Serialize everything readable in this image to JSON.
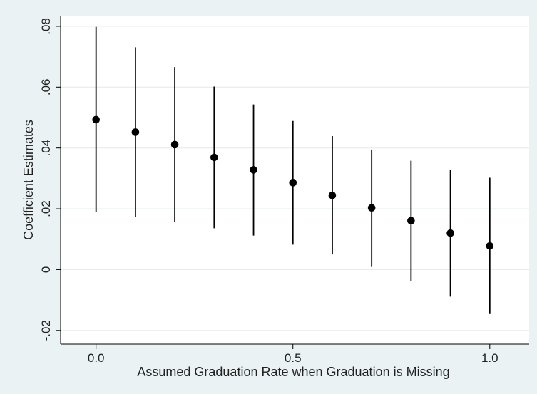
{
  "chart_data": {
    "type": "scatter",
    "xlabel": "Assumed Graduation Rate when Graduation is Missing",
    "ylabel": "Coefficient Estimates",
    "xlim": [
      -0.09,
      1.1
    ],
    "ylim": [
      -0.0245,
      0.0835
    ],
    "x_ticks": [
      0.0,
      0.5,
      1.0
    ],
    "x_tick_labels": [
      "0.0",
      "0.5",
      "1.0"
    ],
    "y_ticks": [
      -0.02,
      0,
      0.02,
      0.04,
      0.06,
      0.08
    ],
    "y_tick_labels": [
      "-.02",
      "0",
      ".02",
      ".04",
      ".06",
      ".08"
    ],
    "grid": "horizontal",
    "series": [
      {
        "marker": "filled-circle",
        "error_bars": true,
        "points": [
          {
            "x": 0.0,
            "y": 0.0493,
            "lo": 0.0189,
            "hi": 0.0798
          },
          {
            "x": 0.1,
            "y": 0.0452,
            "lo": 0.0174,
            "hi": 0.0731
          },
          {
            "x": 0.2,
            "y": 0.0411,
            "lo": 0.0156,
            "hi": 0.0666
          },
          {
            "x": 0.3,
            "y": 0.0369,
            "lo": 0.0136,
            "hi": 0.0602
          },
          {
            "x": 0.4,
            "y": 0.0328,
            "lo": 0.0112,
            "hi": 0.0543
          },
          {
            "x": 0.5,
            "y": 0.0286,
            "lo": 0.0082,
            "hi": 0.0489
          },
          {
            "x": 0.6,
            "y": 0.0244,
            "lo": 0.005,
            "hi": 0.0439
          },
          {
            "x": 0.7,
            "y": 0.0203,
            "lo": 0.0009,
            "hi": 0.0395
          },
          {
            "x": 0.8,
            "y": 0.0161,
            "lo": -0.0037,
            "hi": 0.0358
          },
          {
            "x": 0.9,
            "y": 0.012,
            "lo": -0.0089,
            "hi": 0.0328
          },
          {
            "x": 1.0,
            "y": 0.0078,
            "lo": -0.0146,
            "hi": 0.0302
          }
        ]
      }
    ]
  },
  "colors": {
    "background": "#eaf2f3",
    "plot_area": "#ffffff",
    "gridline": "#e6ecee",
    "marker": "#000000",
    "axis": "#000000"
  }
}
